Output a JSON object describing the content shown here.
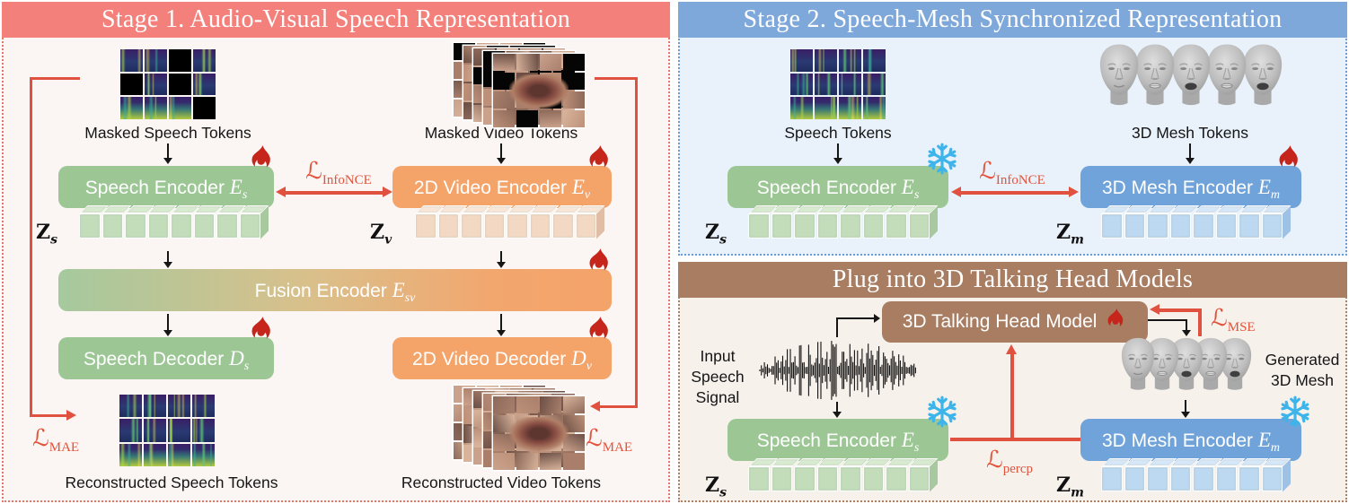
{
  "stage1": {
    "header": "Stage 1.  Audio-Visual Speech Representation",
    "masked_speech_tokens_label": "Masked Speech Tokens",
    "masked_video_tokens_label": "Masked Video Tokens",
    "speech_encoder": {
      "text": "Speech Encoder ",
      "var": "E",
      "sub": "s"
    },
    "video_encoder": {
      "text": "2D Video Encoder ",
      "var": "E",
      "sub": "v"
    },
    "fusion_encoder": {
      "text": "Fusion Encoder ",
      "var": "E",
      "sub": "sv"
    },
    "speech_decoder": {
      "text": "Speech Decoder ",
      "var": "D",
      "sub": "s"
    },
    "video_decoder": {
      "text": "2D Video Decoder ",
      "var": "D",
      "sub": "v"
    },
    "loss_infonce": {
      "l": "ℒ",
      "sub": "InfoNCE"
    },
    "loss_mae_left": {
      "l": "ℒ",
      "sub": "MAE"
    },
    "loss_mae_right": {
      "l": "ℒ",
      "sub": "MAE"
    },
    "z_s": {
      "z": "Z",
      "sub": "s"
    },
    "z_v": {
      "z": "Z",
      "sub": "v"
    },
    "reconstructed_speech_label": "Reconstructed Speech Tokens",
    "reconstructed_video_label": "Reconstructed Video Tokens"
  },
  "stage2": {
    "header": "Stage 2.  Speech-Mesh Synchronized Representation",
    "speech_tokens_label": "Speech Tokens",
    "mesh_tokens_label": "3D Mesh Tokens",
    "speech_encoder": {
      "text": "Speech Encoder ",
      "var": "E",
      "sub": "s"
    },
    "mesh_encoder": {
      "text": "3D Mesh Encoder ",
      "var": "E",
      "sub": "m"
    },
    "loss_infonce": {
      "l": "ℒ",
      "sub": "InfoNCE"
    },
    "z_s": {
      "z": "Z",
      "sub": "s"
    },
    "z_m": {
      "z": "Z",
      "sub": "m"
    }
  },
  "plug": {
    "header": "Plug into 3D Talking Head Models",
    "model_label": "3D Talking Head Model",
    "input_signal_lines": [
      "Input",
      "Speech",
      "Signal"
    ],
    "generated_mesh_lines": [
      "Generated",
      "3D Mesh"
    ],
    "loss_mse": {
      "l": "ℒ",
      "sub": "MSE"
    },
    "loss_percp": {
      "l": "ℒ",
      "sub": "percp"
    },
    "speech_encoder": {
      "text": "Speech Encoder ",
      "var": "E",
      "sub": "s"
    },
    "mesh_encoder": {
      "text": "3D Mesh Encoder ",
      "var": "E",
      "sub": "m"
    },
    "z_s": {
      "z": "Z",
      "sub": "s"
    },
    "z_m": {
      "z": "Z",
      "sub": "m"
    }
  },
  "colors": {
    "stage1_header_bg": "#f4807b",
    "stage2_header_bg": "#7fa8da",
    "plug_header_bg": "#a87d62",
    "green_box": "#9cc795",
    "orange_box": "#f4a369",
    "blue_box": "#6fa3da",
    "brown_box": "#a87d62",
    "loss_red": "#e2533b",
    "fire_red": "#c5251b",
    "snowflake_blue": "#3db4ea"
  }
}
